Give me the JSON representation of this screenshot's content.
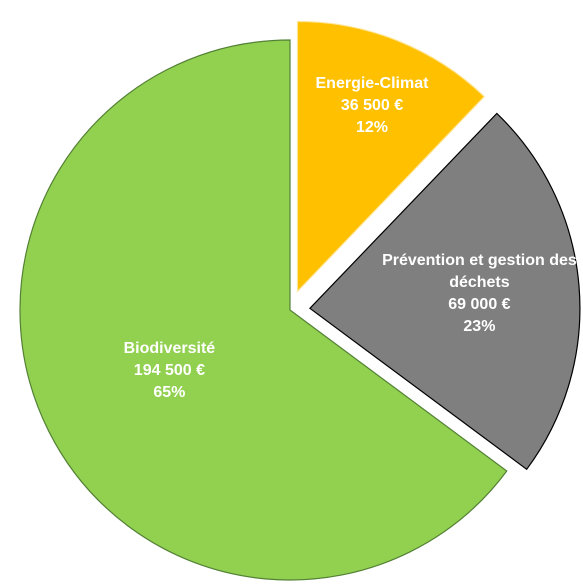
{
  "chart_data": {
    "type": "pie",
    "categories": [
      "Energie-Climat",
      "Prévention et gestion des déchets",
      "Biodiversité"
    ],
    "values": [
      36500,
      69000,
      194500
    ],
    "value_labels": [
      "36 500 €",
      "69 000 €",
      "194 500 €"
    ],
    "percents": [
      12,
      23,
      65
    ],
    "percent_labels": [
      "12%",
      "23%",
      "65%"
    ],
    "colors": [
      "#ffc000",
      "#7f7f7f",
      "#92d050"
    ],
    "exploded": [
      true,
      true,
      false
    ]
  }
}
